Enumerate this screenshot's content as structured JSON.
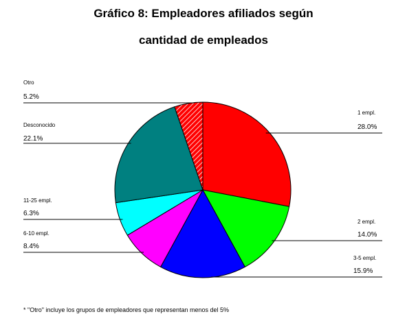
{
  "chart_data": {
    "type": "pie",
    "title_line1": "Gráfico 8: Empleadores afiliados según",
    "title_line2": "cantidad de empleados",
    "slices": [
      {
        "label": "1 empl.",
        "value": 28.0,
        "value_label": "28.0%",
        "color": "#ff0000"
      },
      {
        "label": "2 empl.",
        "value": 14.0,
        "value_label": "14.0%",
        "color": "#00ff00"
      },
      {
        "label": "3-5 empl.",
        "value": 15.9,
        "value_label": "15.9%",
        "color": "#0000ff"
      },
      {
        "label": "6-10 empl.",
        "value": 8.4,
        "value_label": "8.4%",
        "color": "#ff00ff"
      },
      {
        "label": "11-25 empl.",
        "value": 6.3,
        "value_label": "6.3%",
        "color": "#00ffff"
      },
      {
        "label": "Desconocido",
        "value": 22.1,
        "value_label": "22.1%",
        "color": "#008080"
      },
      {
        "label": "Otro",
        "value": 5.2,
        "value_label": "5.2%",
        "color": "#ff0000",
        "pattern": "hatched"
      }
    ],
    "legend": "none",
    "footnote": "* \"Otro\" incluye los grupos de empleadores que representan menos del 5%"
  }
}
